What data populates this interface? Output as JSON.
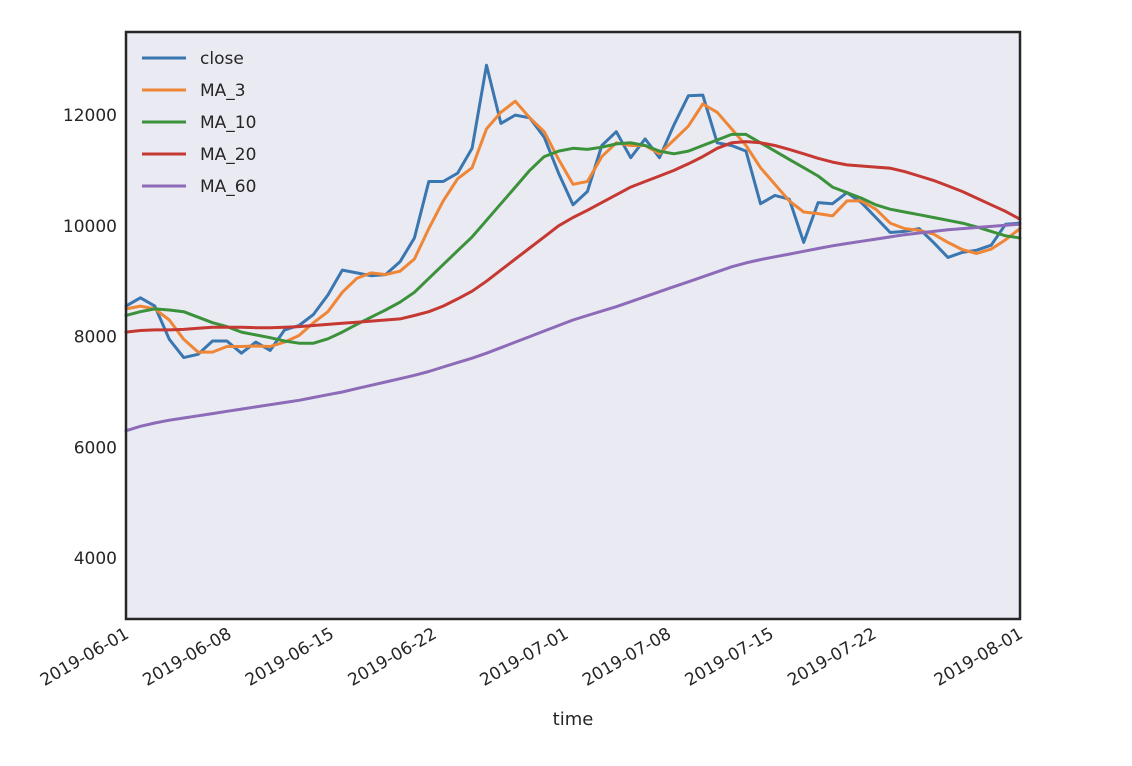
{
  "chart_data": {
    "type": "line",
    "title": "",
    "xlabel": "time",
    "ylabel": "",
    "x_start": "2019-06-01",
    "x_end": "2019-08-01",
    "xlim": [
      "2019-06-01",
      "2019-08-01"
    ],
    "ylim": [
      2900,
      13500
    ],
    "grid": false,
    "legend_position": "top-left",
    "plot_background": "#eaeaf2",
    "y_ticks": [
      4000,
      6000,
      8000,
      10000,
      12000
    ],
    "y_tick_labels": [
      "4000",
      "6000",
      "8000",
      "10000",
      "12000"
    ],
    "x_ticks": [
      "2019-06-01",
      "2019-06-08",
      "2019-06-15",
      "2019-06-22",
      "2019-07-01",
      "2019-07-08",
      "2019-07-15",
      "2019-07-22",
      "2019-08-01"
    ],
    "x_tick_labels": [
      "2019-06-01",
      "2019-06-08",
      "2019-06-15",
      "2019-06-22",
      "2019-07-01",
      "2019-07-08",
      "2019-07-15",
      "2019-07-22",
      "2019-08-01"
    ],
    "series": [
      {
        "name": "close",
        "color": "#3a76af",
        "values": [
          8550,
          8700,
          8550,
          7950,
          7620,
          7680,
          7920,
          7920,
          7700,
          7900,
          7750,
          8120,
          8200,
          8400,
          8750,
          9200,
          9150,
          9100,
          9120,
          9350,
          9780,
          10800,
          10800,
          10950,
          11400,
          12900,
          11850,
          12000,
          11950,
          11600,
          10950,
          10380,
          10620,
          11450,
          11700,
          11230,
          11570,
          11230,
          11820,
          12350,
          12360,
          11500,
          11450,
          11350,
          10400,
          10550,
          10480,
          9700,
          10420,
          10400,
          10600,
          10420,
          10150,
          9880,
          9900,
          9950,
          9700,
          9430,
          9520,
          9560,
          9650,
          10030,
          10050
        ]
      },
      {
        "name": "MA_3",
        "color": "#ef8636",
        "values": [
          8500,
          8550,
          8500,
          8300,
          7950,
          7720,
          7720,
          7820,
          7820,
          7830,
          7820,
          7900,
          8020,
          8250,
          8450,
          8800,
          9050,
          9150,
          9120,
          9180,
          9400,
          9950,
          10450,
          10850,
          11050,
          11750,
          12050,
          12250,
          11950,
          11700,
          11200,
          10750,
          10800,
          11250,
          11500,
          11450,
          11450,
          11300,
          11550,
          11800,
          12200,
          12050,
          11750,
          11450,
          11050,
          10750,
          10450,
          10250,
          10220,
          10180,
          10450,
          10450,
          10300,
          10050,
          9950,
          9920,
          9850,
          9700,
          9570,
          9500,
          9580,
          9750,
          9950
        ]
      },
      {
        "name": "MA_10",
        "color": "#3b923b",
        "values": [
          8380,
          8450,
          8500,
          8480,
          8450,
          8350,
          8250,
          8180,
          8080,
          8030,
          7980,
          7920,
          7880,
          7880,
          7960,
          8080,
          8220,
          8350,
          8480,
          8620,
          8800,
          9050,
          9300,
          9550,
          9800,
          10100,
          10400,
          10700,
          11000,
          11250,
          11350,
          11400,
          11380,
          11420,
          11480,
          11500,
          11450,
          11350,
          11300,
          11350,
          11450,
          11550,
          11650,
          11650,
          11500,
          11350,
          11200,
          11050,
          10900,
          10700,
          10600,
          10500,
          10380,
          10300,
          10250,
          10200,
          10150,
          10100,
          10050,
          9980,
          9900,
          9820,
          9780
        ]
      },
      {
        "name": "MA_20",
        "color": "#c53932",
        "values": [
          8080,
          8110,
          8120,
          8120,
          8130,
          8150,
          8170,
          8170,
          8170,
          8160,
          8160,
          8170,
          8180,
          8200,
          8220,
          8240,
          8260,
          8280,
          8300,
          8320,
          8380,
          8450,
          8550,
          8680,
          8820,
          9000,
          9200,
          9400,
          9600,
          9800,
          10000,
          10150,
          10280,
          10420,
          10560,
          10700,
          10800,
          10900,
          11000,
          11120,
          11250,
          11400,
          11500,
          11520,
          11500,
          11450,
          11380,
          11300,
          11220,
          11150,
          11100,
          11080,
          11060,
          11040,
          10980,
          10900,
          10820,
          10720,
          10620,
          10500,
          10380,
          10260,
          10120
        ]
      },
      {
        "name": "MA_60",
        "color": "#8d6bb8",
        "values": [
          6300,
          6380,
          6440,
          6490,
          6530,
          6570,
          6610,
          6650,
          6690,
          6730,
          6770,
          6810,
          6850,
          6900,
          6950,
          7000,
          7060,
          7120,
          7180,
          7240,
          7300,
          7370,
          7450,
          7530,
          7610,
          7700,
          7800,
          7900,
          8000,
          8100,
          8200,
          8300,
          8380,
          8460,
          8540,
          8630,
          8720,
          8810,
          8900,
          8990,
          9080,
          9170,
          9260,
          9330,
          9390,
          9440,
          9490,
          9540,
          9590,
          9640,
          9680,
          9720,
          9760,
          9800,
          9840,
          9870,
          9900,
          9930,
          9950,
          9970,
          9990,
          10010,
          10030
        ]
      }
    ]
  }
}
